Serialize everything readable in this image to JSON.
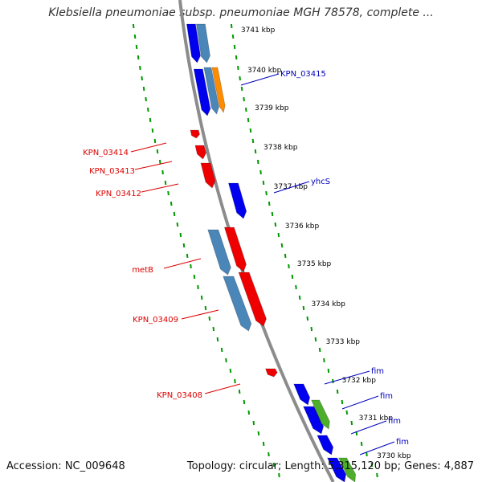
{
  "title": "Klebsiella pneumoniae subsp. pneumoniae MGH 78578, complete ...",
  "footer": {
    "accession": "Accession: NC_009648",
    "summary": "Topology: circular; Length: 5,315,120 bp; Genes: 4,887"
  },
  "colors": {
    "forward_gene": "#0000ee",
    "reverse_gene": "#ee0000",
    "steel_gene": "#4a86b8",
    "orange_gene": "#ff8c00",
    "green_gene": "#4cae2a",
    "backbone": "#8c8c8c",
    "tick": "#009900",
    "left_label": "#dd0000",
    "right_label": "#0000bb",
    "scale_label": "#000000"
  },
  "scale_ticks": [
    "3741 kbp",
    "3740 kbp",
    "3739 kbp",
    "3738 kbp",
    "3737 kbp",
    "3736 kbp",
    "3735 kbp",
    "3734 kbp",
    "3733 kbp",
    "3732 kbp",
    "3731 kbp",
    "3730 kbp"
  ],
  "gene_labels_left": [
    "KPN_03414",
    "KPN_03413",
    "KPN_03412",
    "metB",
    "KPN_03409",
    "KPN_03408"
  ],
  "gene_labels_right": [
    "KPN_03415",
    "yhcS",
    "fim",
    "fim",
    "fim",
    "fim"
  ]
}
